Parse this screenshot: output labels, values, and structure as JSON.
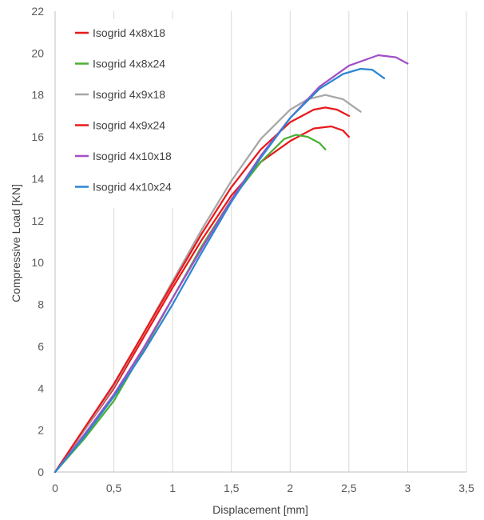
{
  "chart_data": {
    "type": "line",
    "title": "",
    "xlabel": "Displacement [mm]",
    "ylabel": "Compressive Load [KN]",
    "xlim": [
      0,
      3.5
    ],
    "ylim": [
      0,
      22
    ],
    "x_ticks": [
      "0",
      "0,5",
      "1",
      "1,5",
      "2",
      "2,5",
      "3",
      "3,5"
    ],
    "y_ticks": [
      "0",
      "2",
      "4",
      "6",
      "8",
      "10",
      "12",
      "14",
      "16",
      "18",
      "20",
      "22"
    ],
    "grid": "vertical",
    "legend_position": "top-left",
    "series": [
      {
        "name": "Isogrid 4x8x18",
        "color": "#e8191a",
        "points": [
          [
            0,
            0
          ],
          [
            0.25,
            2.0
          ],
          [
            0.5,
            4.0
          ],
          [
            0.75,
            6.4
          ],
          [
            1.0,
            8.8
          ],
          [
            1.25,
            11.1
          ],
          [
            1.5,
            13.2
          ],
          [
            1.75,
            14.8
          ],
          [
            2.0,
            15.8
          ],
          [
            2.2,
            16.4
          ],
          [
            2.35,
            16.5
          ],
          [
            2.45,
            16.3
          ],
          [
            2.5,
            16.0
          ]
        ]
      },
      {
        "name": "Isogrid 4x8x24",
        "color": "#4caf35",
        "points": [
          [
            0,
            0
          ],
          [
            0.25,
            1.6
          ],
          [
            0.5,
            3.4
          ],
          [
            0.75,
            5.8
          ],
          [
            1.0,
            8.3
          ],
          [
            1.25,
            10.8
          ],
          [
            1.5,
            13.0
          ],
          [
            1.75,
            14.8
          ],
          [
            1.95,
            15.9
          ],
          [
            2.05,
            16.1
          ],
          [
            2.15,
            16.0
          ],
          [
            2.25,
            15.7
          ],
          [
            2.3,
            15.4
          ]
        ]
      },
      {
        "name": "Isogrid 4x9x18",
        "color": "#a6a6a6",
        "points": [
          [
            0,
            0
          ],
          [
            0.25,
            2.0
          ],
          [
            0.5,
            4.1
          ],
          [
            0.75,
            6.6
          ],
          [
            1.0,
            9.1
          ],
          [
            1.25,
            11.6
          ],
          [
            1.5,
            13.9
          ],
          [
            1.75,
            15.9
          ],
          [
            2.0,
            17.3
          ],
          [
            2.15,
            17.8
          ],
          [
            2.3,
            18.0
          ],
          [
            2.45,
            17.8
          ],
          [
            2.6,
            17.2
          ]
        ]
      },
      {
        "name": "Isogrid 4x9x24",
        "color": "#e8191a",
        "points": [
          [
            0,
            0
          ],
          [
            0.25,
            2.1
          ],
          [
            0.5,
            4.2
          ],
          [
            0.75,
            6.6
          ],
          [
            1.0,
            9.0
          ],
          [
            1.25,
            11.4
          ],
          [
            1.5,
            13.6
          ],
          [
            1.75,
            15.4
          ],
          [
            2.0,
            16.7
          ],
          [
            2.2,
            17.3
          ],
          [
            2.3,
            17.4
          ],
          [
            2.4,
            17.3
          ],
          [
            2.5,
            17.0
          ]
        ]
      },
      {
        "name": "Isogrid 4x10x18",
        "color": "#a24fc6",
        "points": [
          [
            0,
            0
          ],
          [
            0.25,
            1.8
          ],
          [
            0.5,
            3.7
          ],
          [
            0.75,
            5.9
          ],
          [
            1.0,
            8.3
          ],
          [
            1.25,
            10.7
          ],
          [
            1.5,
            13.0
          ],
          [
            1.75,
            15.1
          ],
          [
            2.0,
            16.9
          ],
          [
            2.25,
            18.4
          ],
          [
            2.5,
            19.4
          ],
          [
            2.75,
            19.9
          ],
          [
            2.9,
            19.8
          ],
          [
            3.0,
            19.5
          ]
        ]
      },
      {
        "name": "Isogrid 4x10x24",
        "color": "#2e86d1",
        "points": [
          [
            0,
            0
          ],
          [
            0.25,
            1.7
          ],
          [
            0.5,
            3.6
          ],
          [
            0.75,
            5.7
          ],
          [
            1.0,
            8.0
          ],
          [
            1.25,
            10.5
          ],
          [
            1.5,
            12.9
          ],
          [
            1.75,
            15.0
          ],
          [
            2.0,
            16.9
          ],
          [
            2.25,
            18.3
          ],
          [
            2.45,
            19.0
          ],
          [
            2.6,
            19.25
          ],
          [
            2.7,
            19.2
          ],
          [
            2.8,
            18.8
          ]
        ]
      }
    ]
  }
}
